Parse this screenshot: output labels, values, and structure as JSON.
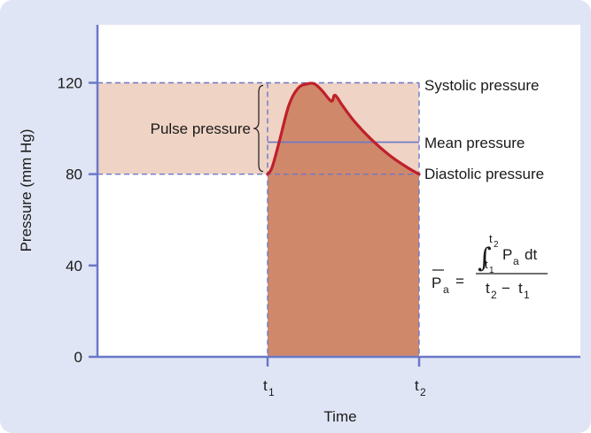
{
  "colors": {
    "background_panel": "#dfe5f4",
    "plot_area": "#ffffff",
    "axis_line": "#6b78c8",
    "dashed_line": "#6b78c8",
    "pulse_band": "#efd3c4",
    "area_fill": "#cf886a",
    "curve": "#c0202a"
  },
  "chart_data": {
    "type": "area",
    "xlabel": "Time",
    "ylabel": "Pressure (mm Hg)",
    "ylim": [
      0,
      140
    ],
    "yticks": [
      0,
      40,
      80,
      120
    ],
    "ytick_labels": [
      "0",
      "40",
      "80",
      "120"
    ],
    "xticks": [
      {
        "label": "t",
        "sub": "1"
      },
      {
        "label": "t",
        "sub": "2"
      }
    ],
    "systolic": 120,
    "diastolic": 80,
    "mean": 94,
    "pressure_curve": {
      "t": [
        0.0,
        0.03,
        0.08,
        0.14,
        0.2,
        0.26,
        0.31,
        0.36,
        0.42,
        0.44,
        0.46,
        0.5,
        0.58,
        0.68,
        0.8,
        0.92,
        1.0
      ],
      "p": [
        80,
        83,
        95,
        110,
        117.5,
        119.5,
        119.5,
        116.5,
        112,
        114.5,
        113.5,
        109.5,
        102.5,
        95.5,
        88.5,
        83,
        80
      ]
    }
  },
  "annotations": {
    "systolic_label": "Systolic pressure",
    "mean_label": "Mean pressure",
    "diastolic_label": "Diastolic pressure",
    "pulse_label": "Pulse pressure"
  },
  "equation": {
    "lhs": "P",
    "lhs_sub": "a",
    "equals": "=",
    "integral": "∫",
    "upper_limit": "t",
    "upper_limit_sub": "2",
    "lower_limit": "t",
    "lower_limit_sub": "1",
    "integrand": "P",
    "integrand_sub": "a",
    "differential": "dt",
    "denominator_left": "t",
    "denominator_left_sub": "2",
    "minus": "−",
    "denominator_right": "t",
    "denominator_right_sub": "1"
  }
}
